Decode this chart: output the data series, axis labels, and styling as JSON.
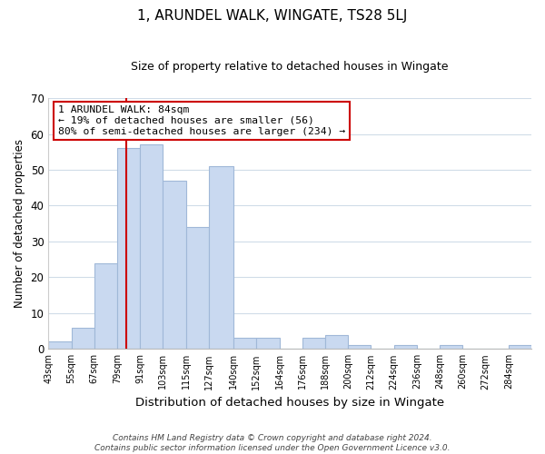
{
  "title": "1, ARUNDEL WALK, WINGATE, TS28 5LJ",
  "subtitle": "Size of property relative to detached houses in Wingate",
  "xlabel": "Distribution of detached houses by size in Wingate",
  "ylabel": "Number of detached properties",
  "bin_labels": [
    "43sqm",
    "55sqm",
    "67sqm",
    "79sqm",
    "91sqm",
    "103sqm",
    "115sqm",
    "127sqm",
    "140sqm",
    "152sqm",
    "164sqm",
    "176sqm",
    "188sqm",
    "200sqm",
    "212sqm",
    "224sqm",
    "236sqm",
    "248sqm",
    "260sqm",
    "272sqm",
    "284sqm"
  ],
  "bin_starts": [
    43,
    55,
    67,
    79,
    91,
    103,
    115,
    127,
    140,
    152,
    164,
    176,
    188,
    200,
    212,
    224,
    236,
    248,
    260,
    272,
    284
  ],
  "bar_values": [
    2,
    6,
    24,
    56,
    57,
    47,
    34,
    51,
    3,
    3,
    0,
    3,
    4,
    1,
    0,
    1,
    0,
    1,
    0,
    0,
    1
  ],
  "bar_color": "#c9d9f0",
  "bar_edge_color": "#a0b8d8",
  "vline_x": 84,
  "vline_color": "#cc0000",
  "ylim": [
    0,
    70
  ],
  "yticks": [
    0,
    10,
    20,
    30,
    40,
    50,
    60,
    70
  ],
  "annotation_line1": "1 ARUNDEL WALK: 84sqm",
  "annotation_line2": "← 19% of detached houses are smaller (56)",
  "annotation_line3": "80% of semi-detached houses are larger (234) →",
  "annotation_box_color": "#ffffff",
  "annotation_box_edge": "#cc0000",
  "footer_text": "Contains HM Land Registry data © Crown copyright and database right 2024.\nContains public sector information licensed under the Open Government Licence v3.0.",
  "background_color": "#ffffff",
  "grid_color": "#d0dce8"
}
